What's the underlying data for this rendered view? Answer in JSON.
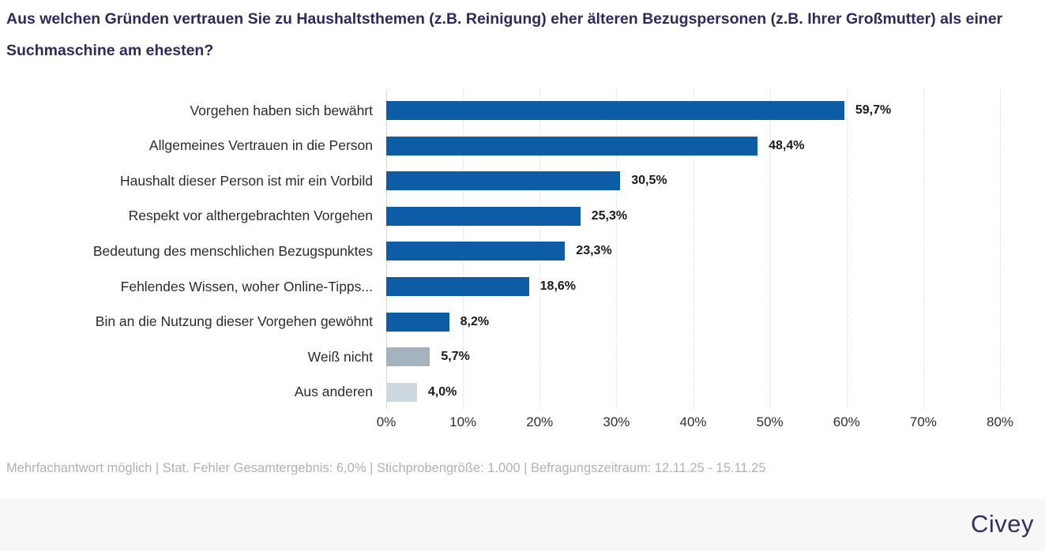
{
  "title": "Aus welchen Gründen vertrauen Sie zu Haushaltsthemen (z.B. Reinigung) eher älteren Bezugspersonen (z.B. Ihrer Großmutter) als einer Suchmaschine am ehesten?",
  "chart_data": {
    "type": "bar",
    "orientation": "horizontal",
    "categories": [
      "Vorgehen haben sich bewährt",
      "Allgemeines Vertrauen in die Person",
      "Haushalt dieser Person ist mir ein Vorbild",
      "Respekt vor althergebrachten Vorgehen",
      "Bedeutung des menschlichen Bezugspunktes",
      "Fehlendes Wissen, woher Online-Tipps...",
      "Bin an die Nutzung dieser Vorgehen gewöhnt",
      "Weiß nicht",
      "Aus anderen"
    ],
    "values": [
      59.7,
      48.4,
      30.5,
      25.3,
      23.3,
      18.6,
      8.2,
      5.7,
      4.0
    ],
    "value_labels": [
      "59,7%",
      "48,4%",
      "30,5%",
      "25,3%",
      "23,3%",
      "18,6%",
      "8,2%",
      "5,7%",
      "4,0%"
    ],
    "bar_color_keys": [
      "primary",
      "primary",
      "primary",
      "primary",
      "primary",
      "primary",
      "primary",
      "neutral_dark",
      "neutral_light"
    ],
    "xlim": [
      0,
      80
    ],
    "x_ticks": [
      "0%",
      "10%",
      "20%",
      "30%",
      "40%",
      "50%",
      "60%",
      "70%",
      "80%"
    ],
    "grid": "vertical dotted gridlines at each 10%, solid axis line at 0%",
    "legend": "none",
    "xlabel": "",
    "ylabel": ""
  },
  "colors": {
    "primary": "#0d5ca6",
    "neutral_dark": "#a5b3bf",
    "neutral_light": "#cdd8df",
    "title": "#2e2a5c",
    "footnote": "#b2b0b0",
    "brandbar_bg": "#f7f7f8",
    "logo": "#37305f"
  },
  "footer": {
    "note": "Mehrfachantwort möglich | Stat. Fehler Gesamtergebnis: 6,0% | Stichprobengröße: 1.000 | Befragungszeitraum: 12.11.25 - 15.11.25",
    "brand": "Civey"
  }
}
